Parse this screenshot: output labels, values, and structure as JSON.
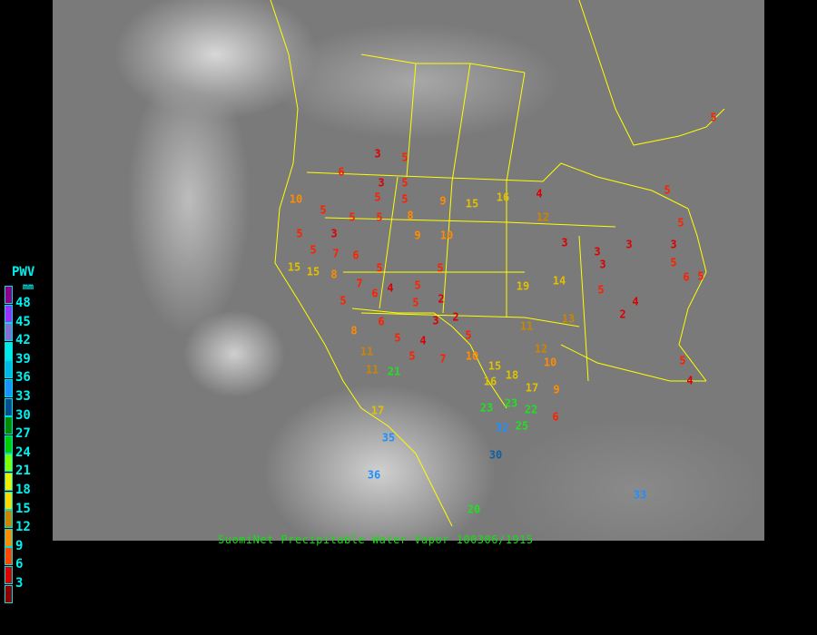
{
  "caption": "SuomiNet Precipitable Water Vapor  100306/1915",
  "legend": {
    "title": "PWV",
    "unit": "mm",
    "labels": [
      "48",
      "45",
      "42",
      "39",
      "36",
      "33",
      "30",
      "27",
      "24",
      "21",
      "18",
      "15",
      "12",
      "9",
      "6",
      "3"
    ],
    "colors": [
      "#8b008b",
      "#9b30ff",
      "#8470d0",
      "#00e8e8",
      "#00b8e8",
      "#1e90ff",
      "#00508f",
      "#008b00",
      "#00cd00",
      "#7fff00",
      "#eeee00",
      "#ffd700",
      "#cd8500",
      "#ff8c00",
      "#ff4500",
      "#dd0000",
      "#8b0000"
    ]
  },
  "stations": [
    "3",
    "5",
    "5",
    "6",
    "5",
    "3",
    "5",
    "9",
    "15",
    "10",
    "16",
    "4",
    "5",
    "3",
    "5",
    "5",
    "8",
    "9",
    "10",
    "15",
    "15",
    "5",
    "7",
    "5",
    "6",
    "8",
    "5",
    "7",
    "6",
    "4",
    "5",
    "2",
    "5",
    "5",
    "3",
    "4",
    "5",
    "7",
    "2",
    "5",
    "11",
    "6",
    "8",
    "19",
    "14",
    "13",
    "12",
    "3",
    "3",
    "3",
    "3",
    "2",
    "3",
    "5",
    "5",
    "6",
    "5",
    "5",
    "4",
    "5",
    "5",
    "11",
    "10",
    "12",
    "15",
    "16",
    "18",
    "17",
    "11",
    "10",
    "9",
    "23",
    "23",
    "22",
    "25",
    "32",
    "30",
    "35",
    "36",
    "17",
    "20",
    "21",
    "33",
    "5",
    "4",
    "5",
    "5",
    "6"
  ]
}
